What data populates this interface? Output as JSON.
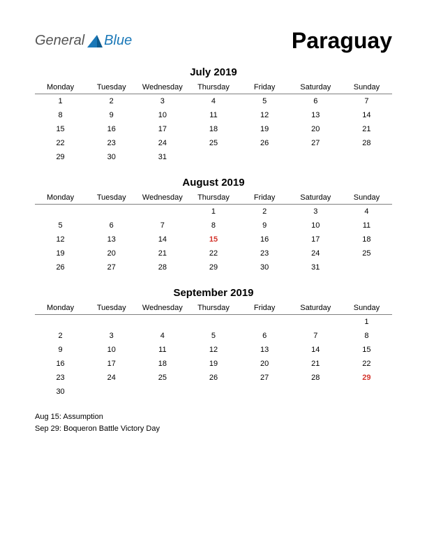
{
  "logo": {
    "part1": "General",
    "part2": "Blue",
    "shape_color": "#1a78b8"
  },
  "country": "Paraguay",
  "weekdays": [
    "Monday",
    "Tuesday",
    "Wednesday",
    "Thursday",
    "Friday",
    "Saturday",
    "Sunday"
  ],
  "colors": {
    "background": "#ffffff",
    "text": "#000000",
    "holiday": "#d4342c",
    "header_rule": "#808080",
    "logo_gray": "#545454",
    "logo_blue": "#1a78b8"
  },
  "months": [
    {
      "title": "July 2019",
      "weeks": [
        [
          {
            "d": "1"
          },
          {
            "d": "2"
          },
          {
            "d": "3"
          },
          {
            "d": "4"
          },
          {
            "d": "5"
          },
          {
            "d": "6"
          },
          {
            "d": "7"
          }
        ],
        [
          {
            "d": "8"
          },
          {
            "d": "9"
          },
          {
            "d": "10"
          },
          {
            "d": "11"
          },
          {
            "d": "12"
          },
          {
            "d": "13"
          },
          {
            "d": "14"
          }
        ],
        [
          {
            "d": "15"
          },
          {
            "d": "16"
          },
          {
            "d": "17"
          },
          {
            "d": "18"
          },
          {
            "d": "19"
          },
          {
            "d": "20"
          },
          {
            "d": "21"
          }
        ],
        [
          {
            "d": "22"
          },
          {
            "d": "23"
          },
          {
            "d": "24"
          },
          {
            "d": "25"
          },
          {
            "d": "26"
          },
          {
            "d": "27"
          },
          {
            "d": "28"
          }
        ],
        [
          {
            "d": "29"
          },
          {
            "d": "30"
          },
          {
            "d": "31"
          },
          {
            "d": ""
          },
          {
            "d": ""
          },
          {
            "d": ""
          },
          {
            "d": ""
          }
        ]
      ]
    },
    {
      "title": "August 2019",
      "weeks": [
        [
          {
            "d": ""
          },
          {
            "d": ""
          },
          {
            "d": ""
          },
          {
            "d": "1"
          },
          {
            "d": "2"
          },
          {
            "d": "3"
          },
          {
            "d": "4"
          }
        ],
        [
          {
            "d": "5"
          },
          {
            "d": "6"
          },
          {
            "d": "7"
          },
          {
            "d": "8"
          },
          {
            "d": "9"
          },
          {
            "d": "10"
          },
          {
            "d": "11"
          }
        ],
        [
          {
            "d": "12"
          },
          {
            "d": "13"
          },
          {
            "d": "14"
          },
          {
            "d": "15",
            "h": true
          },
          {
            "d": "16"
          },
          {
            "d": "17"
          },
          {
            "d": "18"
          }
        ],
        [
          {
            "d": "19"
          },
          {
            "d": "20"
          },
          {
            "d": "21"
          },
          {
            "d": "22"
          },
          {
            "d": "23"
          },
          {
            "d": "24"
          },
          {
            "d": "25"
          }
        ],
        [
          {
            "d": "26"
          },
          {
            "d": "27"
          },
          {
            "d": "28"
          },
          {
            "d": "29"
          },
          {
            "d": "30"
          },
          {
            "d": "31"
          },
          {
            "d": ""
          }
        ]
      ]
    },
    {
      "title": "September 2019",
      "weeks": [
        [
          {
            "d": ""
          },
          {
            "d": ""
          },
          {
            "d": ""
          },
          {
            "d": ""
          },
          {
            "d": ""
          },
          {
            "d": ""
          },
          {
            "d": "1"
          }
        ],
        [
          {
            "d": "2"
          },
          {
            "d": "3"
          },
          {
            "d": "4"
          },
          {
            "d": "5"
          },
          {
            "d": "6"
          },
          {
            "d": "7"
          },
          {
            "d": "8"
          }
        ],
        [
          {
            "d": "9"
          },
          {
            "d": "10"
          },
          {
            "d": "11"
          },
          {
            "d": "12"
          },
          {
            "d": "13"
          },
          {
            "d": "14"
          },
          {
            "d": "15"
          }
        ],
        [
          {
            "d": "16"
          },
          {
            "d": "17"
          },
          {
            "d": "18"
          },
          {
            "d": "19"
          },
          {
            "d": "20"
          },
          {
            "d": "21"
          },
          {
            "d": "22"
          }
        ],
        [
          {
            "d": "23"
          },
          {
            "d": "24"
          },
          {
            "d": "25"
          },
          {
            "d": "26"
          },
          {
            "d": "27"
          },
          {
            "d": "28"
          },
          {
            "d": "29",
            "h": true
          }
        ],
        [
          {
            "d": "30"
          },
          {
            "d": ""
          },
          {
            "d": ""
          },
          {
            "d": ""
          },
          {
            "d": ""
          },
          {
            "d": ""
          },
          {
            "d": ""
          }
        ]
      ]
    }
  ],
  "holiday_list": [
    "Aug 15: Assumption",
    "Sep 29: Boqueron Battle Victory Day"
  ]
}
